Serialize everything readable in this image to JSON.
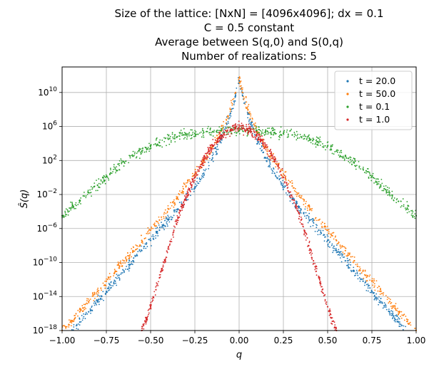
{
  "chart_data": {
    "type": "scatter",
    "title_lines": [
      "Size of the lattice: [NxN] = [4096x4096]; dx = 0.1",
      "C = 0.5 constant",
      "Average between S(q,0) and S(0,q)",
      "Number of realizations: 5"
    ],
    "xlabel": "q",
    "ylabel": "Ŝ(q)",
    "xlim": [
      -1.0,
      1.0
    ],
    "ylim_log10": [
      -18,
      13
    ],
    "yscale": "log",
    "grid": true,
    "legend_position": "top-right",
    "x_ticks": [
      {
        "value": -1.0,
        "label": "−1.00"
      },
      {
        "value": -0.75,
        "label": "−0.75"
      },
      {
        "value": -0.5,
        "label": "−0.50"
      },
      {
        "value": -0.25,
        "label": "−0.25"
      },
      {
        "value": 0.0,
        "label": "0.00"
      },
      {
        "value": 0.25,
        "label": "0.25"
      },
      {
        "value": 0.5,
        "label": "0.50"
      },
      {
        "value": 0.75,
        "label": "0.75"
      },
      {
        "value": 1.0,
        "label": "1.00"
      }
    ],
    "y_ticks": [
      {
        "exp": 10,
        "base": "10",
        "sup": "10"
      },
      {
        "exp": 6,
        "base": "10",
        "sup": "6"
      },
      {
        "exp": 2,
        "base": "10",
        "sup": "2"
      },
      {
        "exp": -2,
        "base": "10",
        "sup": "−2"
      },
      {
        "exp": -6,
        "base": "10",
        "sup": "−6"
      },
      {
        "exp": -10,
        "base": "10",
        "sup": "−10"
      },
      {
        "exp": -14,
        "base": "10",
        "sup": "−14"
      },
      {
        "exp": -18,
        "base": "10",
        "sup": "−18"
      }
    ],
    "series": [
      {
        "name": "t = 20.0",
        "color": "#1f77b4",
        "points_log10": [
          [
            -0.95,
            -18.2
          ],
          [
            -0.9,
            -17.0
          ],
          [
            -0.85,
            -15.8
          ],
          [
            -0.8,
            -14.6
          ],
          [
            -0.75,
            -13.4
          ],
          [
            -0.7,
            -12.2
          ],
          [
            -0.65,
            -11.0
          ],
          [
            -0.6,
            -9.8
          ],
          [
            -0.55,
            -8.6
          ],
          [
            -0.5,
            -7.4
          ],
          [
            -0.45,
            -6.2
          ],
          [
            -0.4,
            -5.0
          ],
          [
            -0.35,
            -3.8
          ],
          [
            -0.3,
            -2.5
          ],
          [
            -0.25,
            -1.1
          ],
          [
            -0.2,
            0.5
          ],
          [
            -0.15,
            2.3
          ],
          [
            -0.1,
            4.5
          ],
          [
            -0.05,
            7.5
          ],
          [
            -0.02,
            9.6
          ],
          [
            0.0,
            11.4
          ],
          [
            0.02,
            9.6
          ],
          [
            0.05,
            7.5
          ],
          [
            0.1,
            4.5
          ],
          [
            0.15,
            2.3
          ],
          [
            0.2,
            0.5
          ],
          [
            0.25,
            -1.1
          ],
          [
            0.3,
            -2.5
          ],
          [
            0.35,
            -3.8
          ],
          [
            0.4,
            -5.0
          ],
          [
            0.45,
            -6.2
          ],
          [
            0.5,
            -7.4
          ],
          [
            0.55,
            -8.6
          ],
          [
            0.6,
            -9.8
          ],
          [
            0.65,
            -11.0
          ],
          [
            0.7,
            -12.2
          ],
          [
            0.75,
            -13.4
          ],
          [
            0.8,
            -14.6
          ],
          [
            0.85,
            -15.8
          ],
          [
            0.9,
            -17.0
          ],
          [
            0.95,
            -18.2
          ]
        ]
      },
      {
        "name": "t = 50.0",
        "color": "#ff7f0e",
        "points_log10": [
          [
            -1.0,
            -18.0
          ],
          [
            -0.95,
            -16.9
          ],
          [
            -0.9,
            -15.8
          ],
          [
            -0.85,
            -14.6
          ],
          [
            -0.8,
            -13.4
          ],
          [
            -0.75,
            -12.2
          ],
          [
            -0.7,
            -11.0
          ],
          [
            -0.65,
            -9.8
          ],
          [
            -0.6,
            -8.6
          ],
          [
            -0.55,
            -7.4
          ],
          [
            -0.5,
            -6.2
          ],
          [
            -0.45,
            -5.0
          ],
          [
            -0.4,
            -3.7
          ],
          [
            -0.35,
            -2.4
          ],
          [
            -0.3,
            -1.0
          ],
          [
            -0.25,
            0.4
          ],
          [
            -0.2,
            1.9
          ],
          [
            -0.15,
            3.6
          ],
          [
            -0.1,
            5.5
          ],
          [
            -0.05,
            8.0
          ],
          [
            -0.02,
            10.0
          ],
          [
            0.0,
            11.7
          ],
          [
            0.02,
            10.0
          ],
          [
            0.05,
            8.0
          ],
          [
            0.1,
            5.5
          ],
          [
            0.15,
            3.6
          ],
          [
            0.2,
            1.9
          ],
          [
            0.25,
            0.4
          ],
          [
            0.3,
            -1.0
          ],
          [
            0.35,
            -2.4
          ],
          [
            0.4,
            -3.7
          ],
          [
            0.45,
            -5.0
          ],
          [
            0.5,
            -6.2
          ],
          [
            0.55,
            -7.4
          ],
          [
            0.6,
            -8.6
          ],
          [
            0.65,
            -9.8
          ],
          [
            0.7,
            -11.0
          ],
          [
            0.75,
            -12.2
          ],
          [
            0.8,
            -13.4
          ],
          [
            0.85,
            -14.6
          ],
          [
            0.9,
            -15.8
          ],
          [
            0.95,
            -16.9
          ],
          [
            1.0,
            -18.0
          ]
        ]
      },
      {
        "name": "t = 0.1",
        "color": "#2ca02c",
        "points_log10": [
          [
            -1.0,
            -4.5
          ],
          [
            -0.95,
            -3.6
          ],
          [
            -0.9,
            -2.8
          ],
          [
            -0.85,
            -1.8
          ],
          [
            -0.8,
            -0.9
          ],
          [
            -0.75,
            0.1
          ],
          [
            -0.7,
            1.0
          ],
          [
            -0.65,
            1.8
          ],
          [
            -0.6,
            2.5
          ],
          [
            -0.55,
            3.1
          ],
          [
            -0.5,
            3.7
          ],
          [
            -0.45,
            4.1
          ],
          [
            -0.4,
            4.5
          ],
          [
            -0.35,
            4.8
          ],
          [
            -0.3,
            5.0
          ],
          [
            -0.25,
            5.2
          ],
          [
            -0.2,
            5.3
          ],
          [
            -0.15,
            5.4
          ],
          [
            -0.1,
            5.5
          ],
          [
            -0.05,
            5.5
          ],
          [
            0.0,
            5.5
          ],
          [
            0.05,
            5.5
          ],
          [
            0.1,
            5.5
          ],
          [
            0.15,
            5.4
          ],
          [
            0.2,
            5.3
          ],
          [
            0.25,
            5.2
          ],
          [
            0.3,
            5.0
          ],
          [
            0.35,
            4.8
          ],
          [
            0.4,
            4.5
          ],
          [
            0.45,
            4.1
          ],
          [
            0.5,
            3.7
          ],
          [
            0.55,
            3.1
          ],
          [
            0.6,
            2.5
          ],
          [
            0.65,
            1.8
          ],
          [
            0.7,
            1.0
          ],
          [
            0.75,
            0.1
          ],
          [
            0.8,
            -0.9
          ],
          [
            0.85,
            -1.8
          ],
          [
            0.9,
            -2.8
          ],
          [
            0.95,
            -3.6
          ],
          [
            1.0,
            -4.5
          ]
        ]
      },
      {
        "name": "t = 1.0",
        "color": "#d62728",
        "points_log10": [
          [
            -0.55,
            -18.0
          ],
          [
            -0.52,
            -16.5
          ],
          [
            -0.5,
            -15.2
          ],
          [
            -0.47,
            -13.2
          ],
          [
            -0.45,
            -11.8
          ],
          [
            -0.42,
            -9.8
          ],
          [
            -0.4,
            -8.4
          ],
          [
            -0.37,
            -6.4
          ],
          [
            -0.35,
            -5.0
          ],
          [
            -0.32,
            -3.3
          ],
          [
            -0.3,
            -2.3
          ],
          [
            -0.27,
            -0.9
          ],
          [
            -0.25,
            0.0
          ],
          [
            -0.22,
            1.3
          ],
          [
            -0.2,
            2.1
          ],
          [
            -0.17,
            3.1
          ],
          [
            -0.15,
            3.7
          ],
          [
            -0.12,
            4.5
          ],
          [
            -0.1,
            4.9
          ],
          [
            -0.07,
            5.4
          ],
          [
            -0.05,
            5.6
          ],
          [
            -0.02,
            5.8
          ],
          [
            0.0,
            5.85
          ],
          [
            0.02,
            5.8
          ],
          [
            0.05,
            5.6
          ],
          [
            0.07,
            5.4
          ],
          [
            0.1,
            4.9
          ],
          [
            0.12,
            4.5
          ],
          [
            0.15,
            3.7
          ],
          [
            0.17,
            3.1
          ],
          [
            0.2,
            2.1
          ],
          [
            0.22,
            1.3
          ],
          [
            0.25,
            0.0
          ],
          [
            0.27,
            -0.9
          ],
          [
            0.3,
            -2.3
          ],
          [
            0.32,
            -3.3
          ],
          [
            0.35,
            -5.0
          ],
          [
            0.37,
            -6.4
          ],
          [
            0.4,
            -8.4
          ],
          [
            0.42,
            -9.8
          ],
          [
            0.45,
            -11.8
          ],
          [
            0.47,
            -13.2
          ],
          [
            0.5,
            -15.2
          ],
          [
            0.52,
            -16.5
          ],
          [
            0.55,
            -18.0
          ]
        ]
      }
    ]
  }
}
